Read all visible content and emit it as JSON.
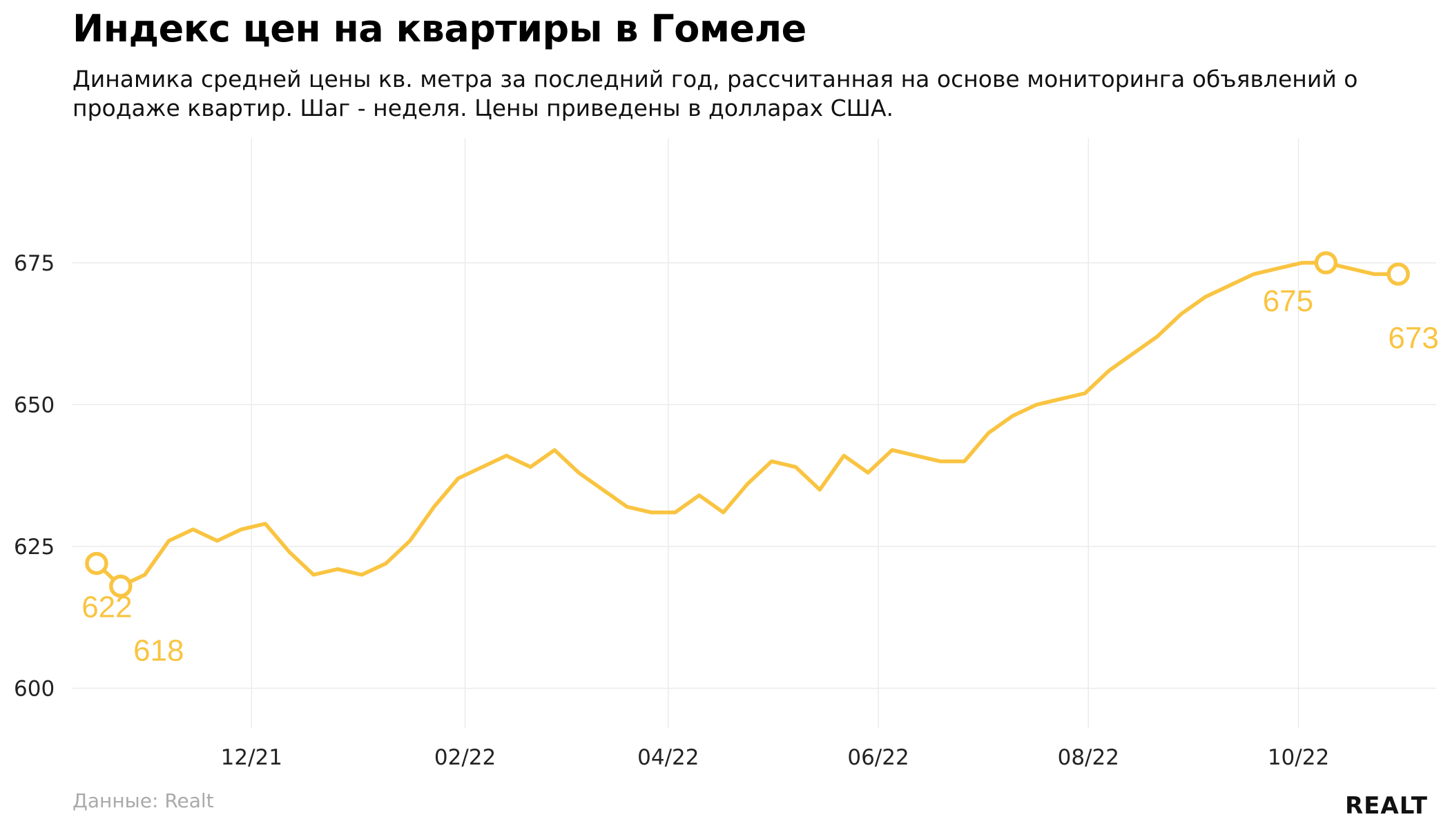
{
  "title": "Индекс цен на квартиры в Гомеле",
  "subtitle": "Динамика средней цены кв. метра за последний год, рассчитанная на основе мониторинга объявлений о продаже квартир. Шаг - неделя. Цены приведены в долларах США.",
  "source": "Данные: Realt",
  "logo": "REALT",
  "colors": {
    "line": "#f9c441",
    "grid": "#ebebeb",
    "axis_text": "#222222"
  },
  "chart_data": {
    "type": "line",
    "title": "Индекс цен на квартиры в Гомеле",
    "xlabel": "",
    "ylabel": "",
    "ylim": [
      593,
      697
    ],
    "yticks": [
      600,
      625,
      650,
      675
    ],
    "xlim": [
      "2021-10-10",
      "2022-11-10"
    ],
    "xticks": [
      {
        "date": "2021-12-01",
        "label": "12/21"
      },
      {
        "date": "2022-02-01",
        "label": "02/22"
      },
      {
        "date": "2022-04-01",
        "label": "04/22"
      },
      {
        "date": "2022-06-01",
        "label": "06/22"
      },
      {
        "date": "2022-08-01",
        "label": "08/22"
      },
      {
        "date": "2022-10-01",
        "label": "10/22"
      }
    ],
    "grid": true,
    "series": [
      {
        "x": [
          "2021-10-17",
          "2021-10-24",
          "2021-10-31",
          "2021-11-07",
          "2021-11-14",
          "2021-11-21",
          "2021-11-28",
          "2021-12-05",
          "2021-12-12",
          "2021-12-19",
          "2021-12-26",
          "2022-01-02",
          "2022-01-09",
          "2022-01-16",
          "2022-01-23",
          "2022-01-30",
          "2022-02-06",
          "2022-02-13",
          "2022-02-20",
          "2022-02-27",
          "2022-03-06",
          "2022-03-13",
          "2022-03-20",
          "2022-03-27",
          "2022-04-03",
          "2022-04-10",
          "2022-04-17",
          "2022-04-24",
          "2022-05-01",
          "2022-05-08",
          "2022-05-15",
          "2022-05-22",
          "2022-05-29",
          "2022-06-05",
          "2022-06-12",
          "2022-06-19",
          "2022-06-26",
          "2022-07-03",
          "2022-07-10",
          "2022-07-17",
          "2022-07-24",
          "2022-07-31",
          "2022-08-07",
          "2022-08-14",
          "2022-08-21",
          "2022-08-28",
          "2022-09-04",
          "2022-09-11",
          "2022-09-18",
          "2022-09-25",
          "2022-10-02",
          "2022-10-09",
          "2022-10-16",
          "2022-10-23",
          "2022-10-30"
        ],
        "values": [
          622,
          618,
          620,
          626,
          628,
          626,
          628,
          629,
          624,
          620,
          621,
          620,
          622,
          626,
          632,
          637,
          639,
          641,
          639,
          642,
          638,
          635,
          632,
          631,
          631,
          634,
          631,
          636,
          640,
          639,
          635,
          641,
          638,
          642,
          641,
          640,
          640,
          645,
          648,
          650,
          651,
          652,
          656,
          659,
          662,
          666,
          669,
          671,
          673,
          674,
          675,
          675,
          674,
          673,
          673
        ]
      }
    ],
    "highlighted_points": [
      {
        "x": "2021-10-17",
        "value": 622,
        "label": "622"
      },
      {
        "x": "2021-10-24",
        "value": 618,
        "label": "618"
      },
      {
        "x": "2022-10-09",
        "value": 675,
        "label": "675"
      },
      {
        "x": "2022-10-30",
        "value": 673,
        "label": "673"
      }
    ]
  }
}
